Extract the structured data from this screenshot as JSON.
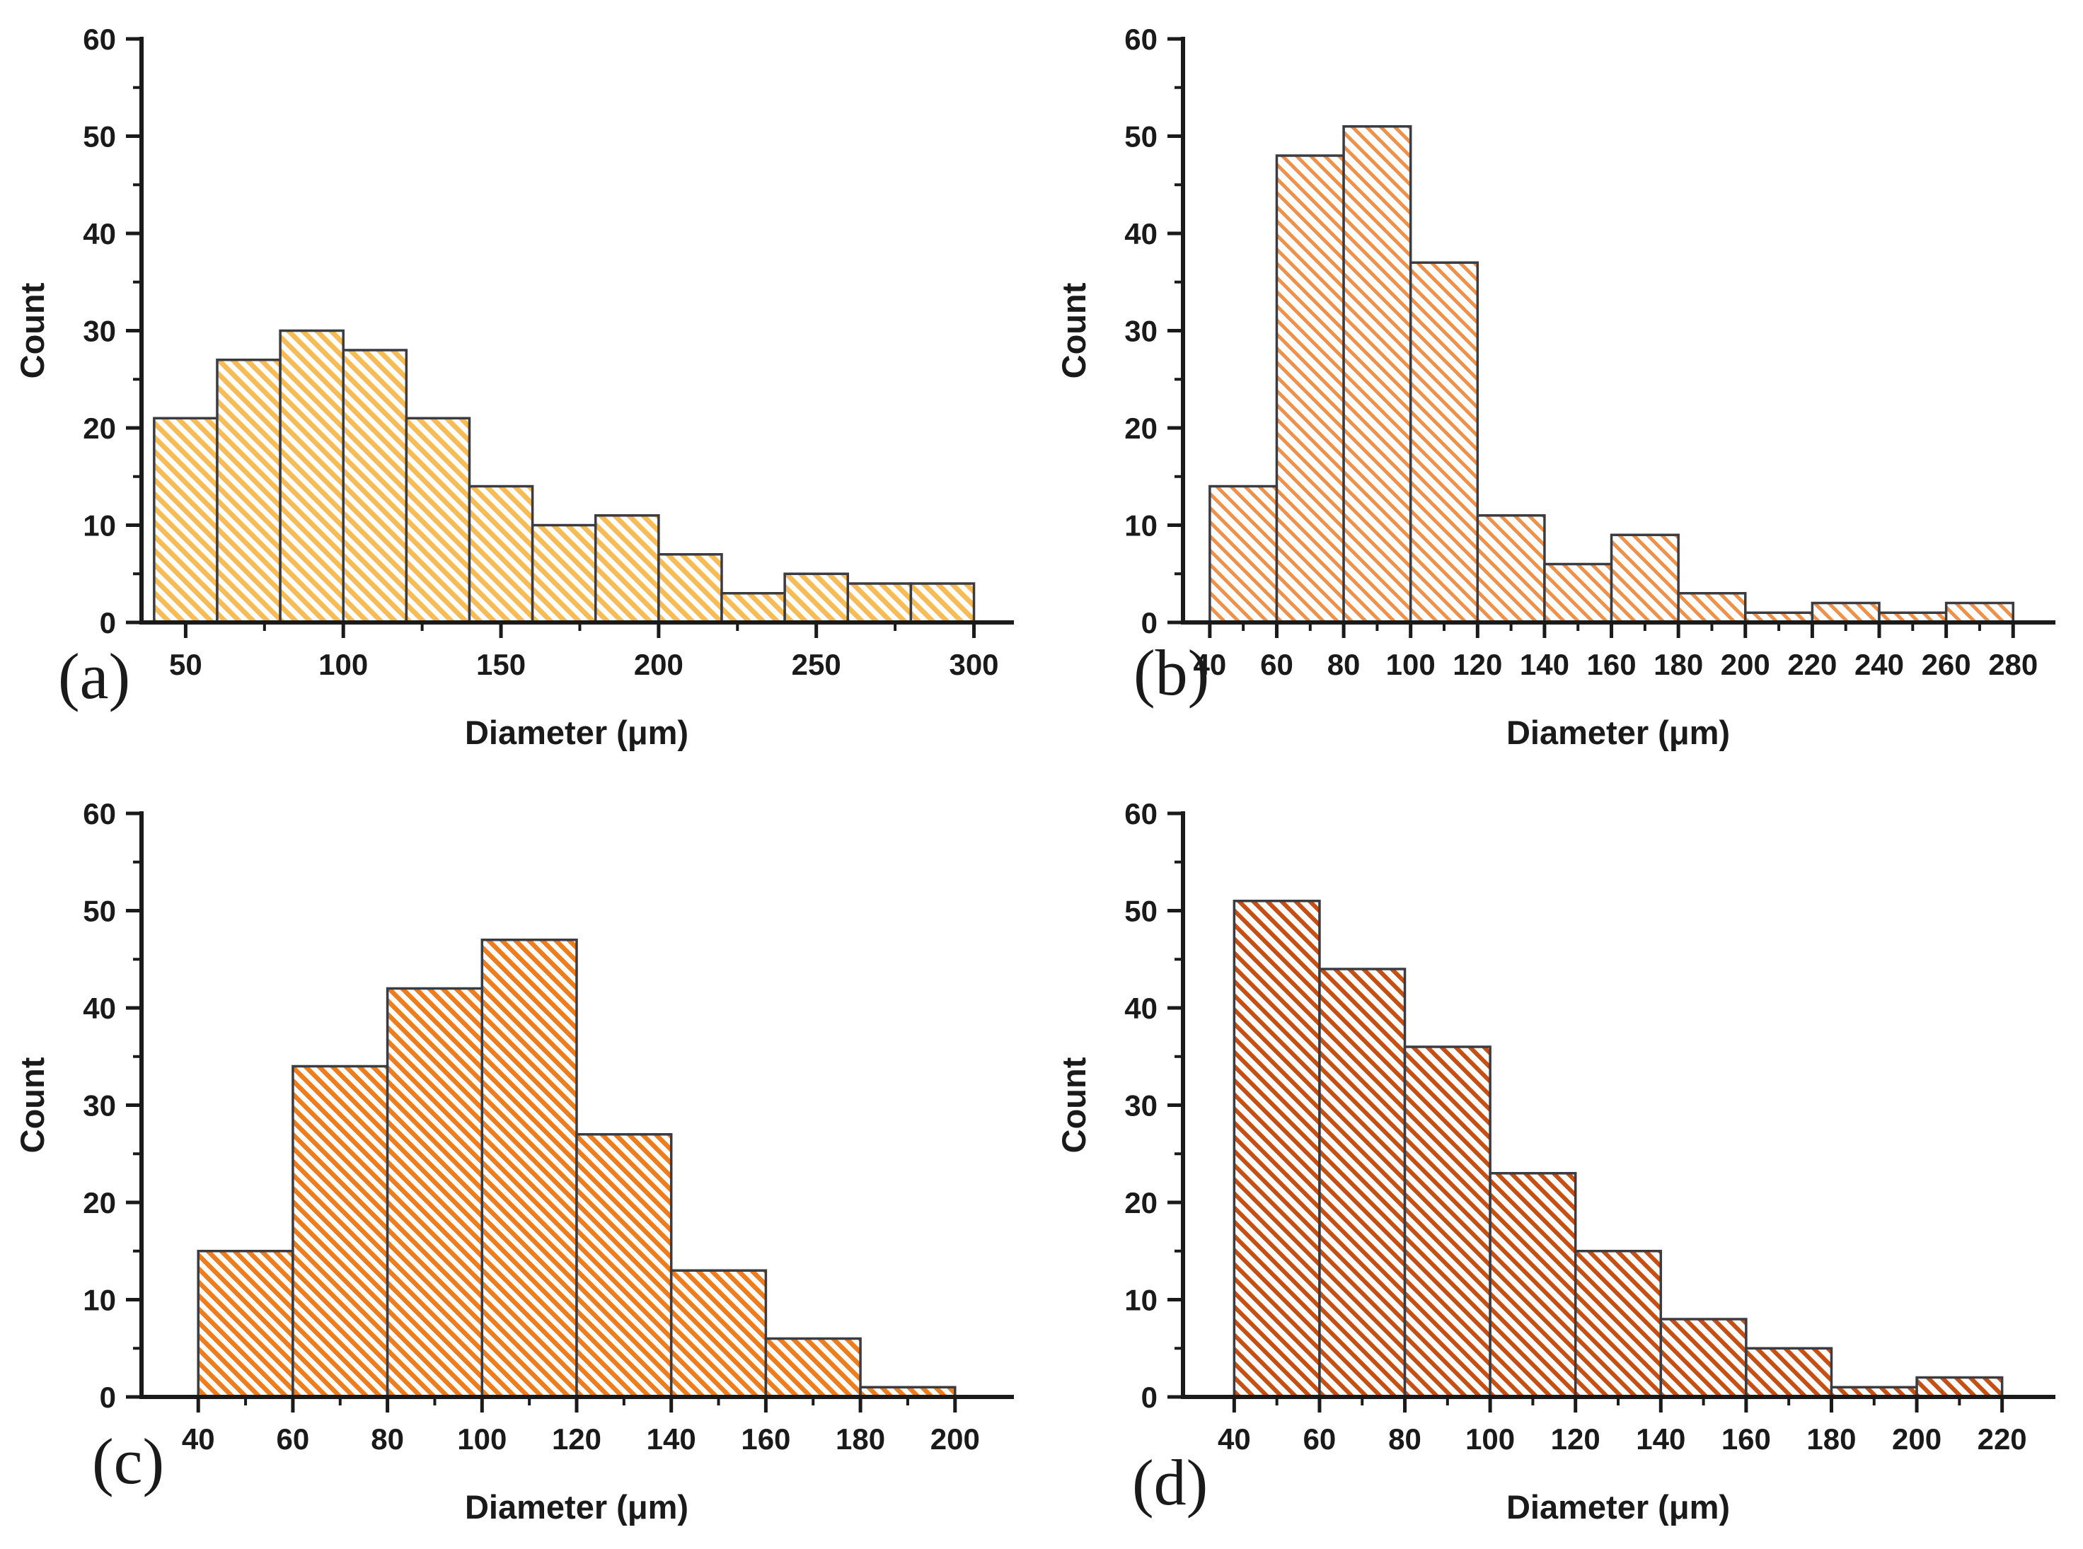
{
  "figure": {
    "background": "#ffffff",
    "axis_color": "#1a1a1a",
    "bar_outline_color": "#3b3b42",
    "tick_label_font_size": 42,
    "axis_title_font_size": 47
  },
  "chart_data": [
    {
      "type": "bar",
      "panel_label": "(a)",
      "title": "",
      "xlabel": "Diameter (μm)",
      "ylabel": "Count",
      "bin_start": 40,
      "bin_width": 20,
      "values": [
        21,
        27,
        30,
        28,
        21,
        14,
        10,
        11,
        7,
        3,
        5,
        4,
        4
      ],
      "x_axis_range": [
        36,
        312
      ],
      "x_ticks": [
        50,
        100,
        150,
        200,
        250,
        300
      ],
      "x_minor_ticks": [
        75,
        125,
        175,
        225,
        275
      ],
      "ylim": [
        0,
        60
      ],
      "y_ticks": [
        0,
        10,
        20,
        30,
        40,
        50,
        60
      ],
      "y_minor_ticks": [
        5,
        15,
        25,
        35,
        45,
        55
      ],
      "grid": false,
      "legend": "none",
      "hatch_color": "#F7BC55",
      "hatch_stroke_width": 7,
      "hatch_period": 20
    },
    {
      "type": "bar",
      "panel_label": "(b)",
      "title": "",
      "xlabel": "Diameter (μm)",
      "ylabel": "Count",
      "bin_start": 40,
      "bin_width": 20,
      "values": [
        14,
        48,
        51,
        37,
        11,
        6,
        9,
        3,
        1,
        2,
        1,
        2
      ],
      "x_axis_range": [
        32,
        292
      ],
      "x_ticks": [
        40,
        60,
        80,
        100,
        120,
        140,
        160,
        180,
        200,
        220,
        240,
        260,
        280
      ],
      "x_minor_ticks": [
        50,
        70,
        90,
        110,
        130,
        150,
        170,
        190,
        210,
        230,
        250,
        270
      ],
      "ylim": [
        0,
        60
      ],
      "y_ticks": [
        0,
        10,
        20,
        30,
        40,
        50,
        60
      ],
      "y_minor_ticks": [
        5,
        15,
        25,
        35,
        45,
        55
      ],
      "grid": false,
      "legend": "none",
      "hatch_color": "#F0914A",
      "hatch_stroke_width": 5,
      "hatch_period": 20
    },
    {
      "type": "bar",
      "panel_label": "(c)",
      "title": "",
      "xlabel": "Diameter (μm)",
      "ylabel": "Count",
      "bin_start": 40,
      "bin_width": 20,
      "values": [
        15,
        34,
        42,
        47,
        27,
        13,
        6,
        1
      ],
      "x_axis_range": [
        28,
        212
      ],
      "x_ticks": [
        40,
        60,
        80,
        100,
        120,
        140,
        160,
        180,
        200
      ],
      "x_minor_ticks": [
        50,
        70,
        90,
        110,
        130,
        150,
        170,
        190
      ],
      "ylim": [
        0,
        60
      ],
      "y_ticks": [
        0,
        10,
        20,
        30,
        40,
        50,
        60
      ],
      "y_minor_ticks": [
        5,
        15,
        25,
        35,
        45,
        55
      ],
      "grid": false,
      "legend": "none",
      "hatch_color": "#EE7D1E",
      "hatch_stroke_width": 6.5,
      "hatch_period": 19
    },
    {
      "type": "bar",
      "panel_label": "(d)",
      "title": "",
      "xlabel": "Diameter (μm)",
      "ylabel": "Count",
      "bin_start": 40,
      "bin_width": 20,
      "values": [
        51,
        44,
        36,
        23,
        15,
        8,
        5,
        1,
        2
      ],
      "x_axis_range": [
        28,
        232
      ],
      "x_ticks": [
        40,
        60,
        80,
        100,
        120,
        140,
        160,
        180,
        200,
        220
      ],
      "x_minor_ticks": [
        50,
        70,
        90,
        110,
        130,
        150,
        170,
        190,
        210
      ],
      "ylim": [
        0,
        60
      ],
      "y_ticks": [
        0,
        10,
        20,
        30,
        40,
        50,
        60
      ],
      "y_minor_ticks": [
        5,
        15,
        25,
        35,
        45,
        55
      ],
      "grid": false,
      "legend": "none",
      "hatch_color": "#C64F13",
      "hatch_stroke_width": 6,
      "hatch_period": 20
    }
  ]
}
